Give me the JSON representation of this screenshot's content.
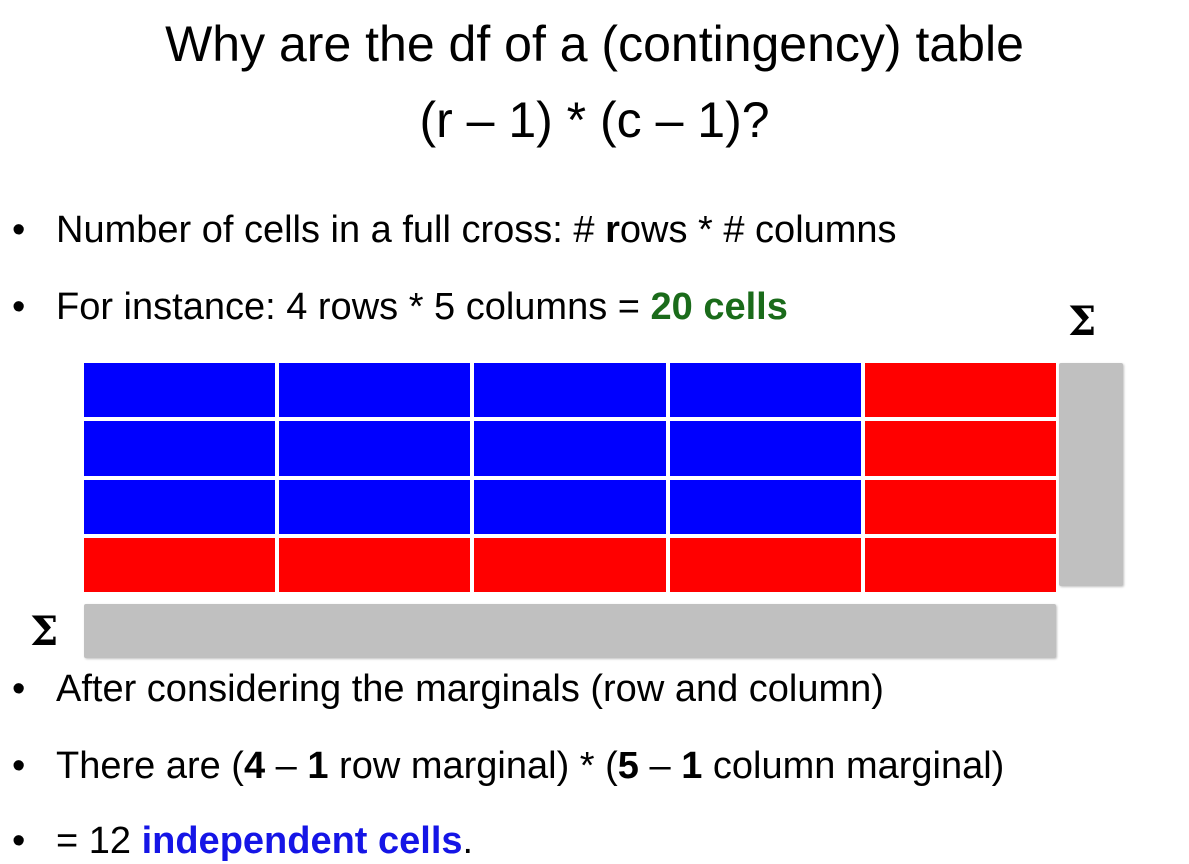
{
  "title": {
    "line1": "Why are the df of a (contingency) table",
    "line2": "(r – 1) * (c – 1)?"
  },
  "bullets": {
    "b1": {
      "pre": "Number of cells in a full cross: # ",
      "bold": "r",
      "post": "ows * # columns"
    },
    "b2": {
      "pre": "For instance: 4 rows * 5 columns = ",
      "highlight": "20 cells"
    },
    "b3": {
      "text": "After considering the marginals (row and column)"
    },
    "b4": {
      "pre": "There are (",
      "n1": "4",
      "dash1": " – ",
      "m1": "1",
      "mid": " row marginal) * (",
      "n2": "5",
      "dash2": " – ",
      "m2": "1",
      "post": " column marginal)"
    },
    "b5": {
      "pre": "= 12 ",
      "highlight": "independent cells",
      "post": "."
    }
  },
  "sigma_symbol": "Σ",
  "bullet_symbol": "•",
  "table": {
    "rows": 4,
    "columns": 5,
    "cells": [
      [
        "blue",
        "blue",
        "blue",
        "blue",
        "red"
      ],
      [
        "blue",
        "blue",
        "blue",
        "blue",
        "red"
      ],
      [
        "blue",
        "blue",
        "blue",
        "blue",
        "red"
      ],
      [
        "red",
        "red",
        "red",
        "red",
        "red"
      ]
    ]
  },
  "colors": {
    "blue": "#0000ff",
    "red": "#ff0000",
    "marginal": "#c0c0c0",
    "green_text": "#1a6b1a",
    "blue_text": "#1515e6"
  }
}
